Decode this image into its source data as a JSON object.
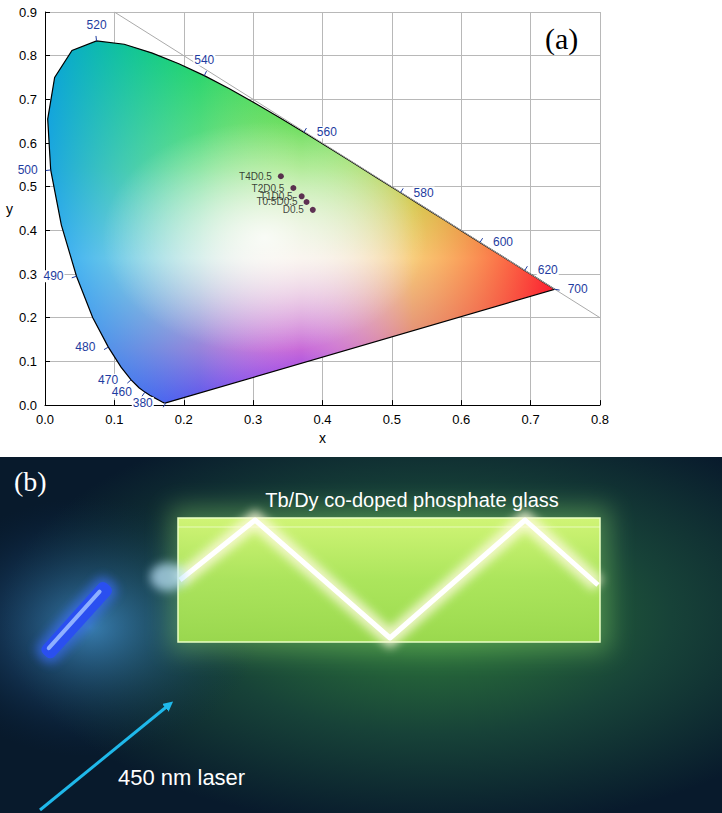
{
  "chart_data": {
    "type": "scatter",
    "title": "(a)",
    "x_label": "x",
    "y_label": "y",
    "xlim": [
      0,
      0.8
    ],
    "xticks": [
      {
        "value": 0,
        "label": "0.0"
      },
      0.1,
      0.2,
      0.3,
      0.4,
      0.5,
      0.6,
      0.7,
      0.8
    ],
    "ylim": [
      0,
      0.9
    ],
    "yticks": [
      {
        "value": 0,
        "label": "0.0"
      },
      0.1,
      0.2,
      0.3,
      0.4,
      0.5,
      0.6,
      0.7,
      0.8,
      0.9
    ],
    "grid": true,
    "labels": [
      "T4D0.5",
      "T2D0.5",
      "T1D0.5",
      "T0.5D0.5",
      "D0.5"
    ],
    "x": [
      0.34,
      0.358,
      0.37,
      0.377,
      0.386
    ],
    "values": [
      0.524,
      0.497,
      0.478,
      0.465,
      0.447
    ],
    "color": "#3d0033",
    "marker": "circle",
    "spectral_locus": {
      "x": [
        0.1741,
        0.1733,
        0.1714,
        0.1689,
        0.1644,
        0.1566,
        0.151,
        0.144,
        0.1355,
        0.1241,
        0.1096,
        0.0913,
        0.0687,
        0.0454,
        0.0235,
        0.0082,
        0.0039,
        0.0139,
        0.0389,
        0.0743,
        0.1142,
        0.1547,
        0.1929,
        0.2296,
        0.2658,
        0.3016,
        0.3373,
        0.3731,
        0.4087,
        0.4441,
        0.4788,
        0.5125,
        0.5448,
        0.5752,
        0.6029,
        0.627,
        0.6658,
        0.6915,
        0.7079,
        0.719,
        0.726,
        0.73,
        0.7334,
        0.7347
      ],
      "y": [
        0.005,
        0.0048,
        0.0051,
        0.0069,
        0.0109,
        0.0177,
        0.0227,
        0.0297,
        0.0399,
        0.0578,
        0.0868,
        0.1327,
        0.2007,
        0.295,
        0.4127,
        0.5384,
        0.6548,
        0.7502,
        0.812,
        0.8338,
        0.8262,
        0.8059,
        0.7816,
        0.7543,
        0.7243,
        0.6923,
        0.6589,
        0.6245,
        0.5896,
        0.5547,
        0.5202,
        0.4866,
        0.4544,
        0.4242,
        0.3965,
        0.3725,
        0.334,
        0.3083,
        0.292,
        0.2809,
        0.274,
        0.27,
        0.2666,
        0.2653
      ]
    },
    "wavelength_labels": [
      {
        "value": 380,
        "x": 0.1741,
        "y": 0.005
      },
      {
        "value": 460,
        "x": 0.144,
        "y": 0.0297
      },
      {
        "value": 470,
        "x": 0.1241,
        "y": 0.0578
      },
      {
        "value": 480,
        "x": 0.0913,
        "y": 0.1327
      },
      {
        "value": 490,
        "x": 0.0454,
        "y": 0.295
      },
      {
        "value": 500,
        "x": 0.0082,
        "y": 0.5384
      },
      {
        "value": 520,
        "x": 0.0743,
        "y": 0.8338
      },
      {
        "value": 540,
        "x": 0.2296,
        "y": 0.7543
      },
      {
        "value": 560,
        "x": 0.3731,
        "y": 0.6245
      },
      {
        "value": 580,
        "x": 0.5125,
        "y": 0.4866
      },
      {
        "value": 600,
        "x": 0.627,
        "y": 0.3725
      },
      {
        "value": 620,
        "x": 0.6915,
        "y": 0.3083
      },
      {
        "value": 700,
        "x": 0.7347,
        "y": 0.2653
      }
    ],
    "reference_line": {
      "x": [
        0.1,
        0.8
      ],
      "y": [
        0.9,
        0.2
      ]
    }
  },
  "photo": {
    "label": "(b)",
    "title": "Tb/Dy co-doped phosphate glass",
    "arrow_label": "450 nm laser"
  }
}
